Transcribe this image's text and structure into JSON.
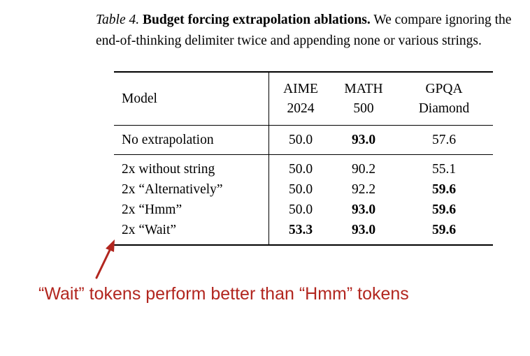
{
  "caption": {
    "label": "Table 4.",
    "title": "Budget forcing extrapolation ablations.",
    "text": "We compare ignoring the end-of-thinking delimiter twice and appending none or various strings."
  },
  "table": {
    "headers": {
      "model": "Model",
      "aime_line1": "AIME",
      "aime_line2": "2024",
      "math_line1": "MATH",
      "math_line2": "500",
      "gpqa_line1": "GPQA",
      "gpqa_line2": "Diamond"
    },
    "baseline": {
      "model": "No extrapolation",
      "aime": "50.0",
      "math": "93.0",
      "gpqa": "57.6"
    },
    "rows": [
      {
        "model": "2x without string",
        "aime": "50.0",
        "math": "90.2",
        "gpqa": "55.1"
      },
      {
        "model": "2x “Alternatively”",
        "aime": "50.0",
        "math": "92.2",
        "gpqa": "59.6"
      },
      {
        "model": "2x “Hmm”",
        "aime": "50.0",
        "math": "93.0",
        "gpqa": "59.6"
      },
      {
        "model": "2x “Wait”",
        "aime": "53.3",
        "math": "93.0",
        "gpqa": "59.6"
      }
    ]
  },
  "annotation": {
    "text": "“Wait” tokens perform better than “Hmm” tokens",
    "color": "#b2261f"
  }
}
